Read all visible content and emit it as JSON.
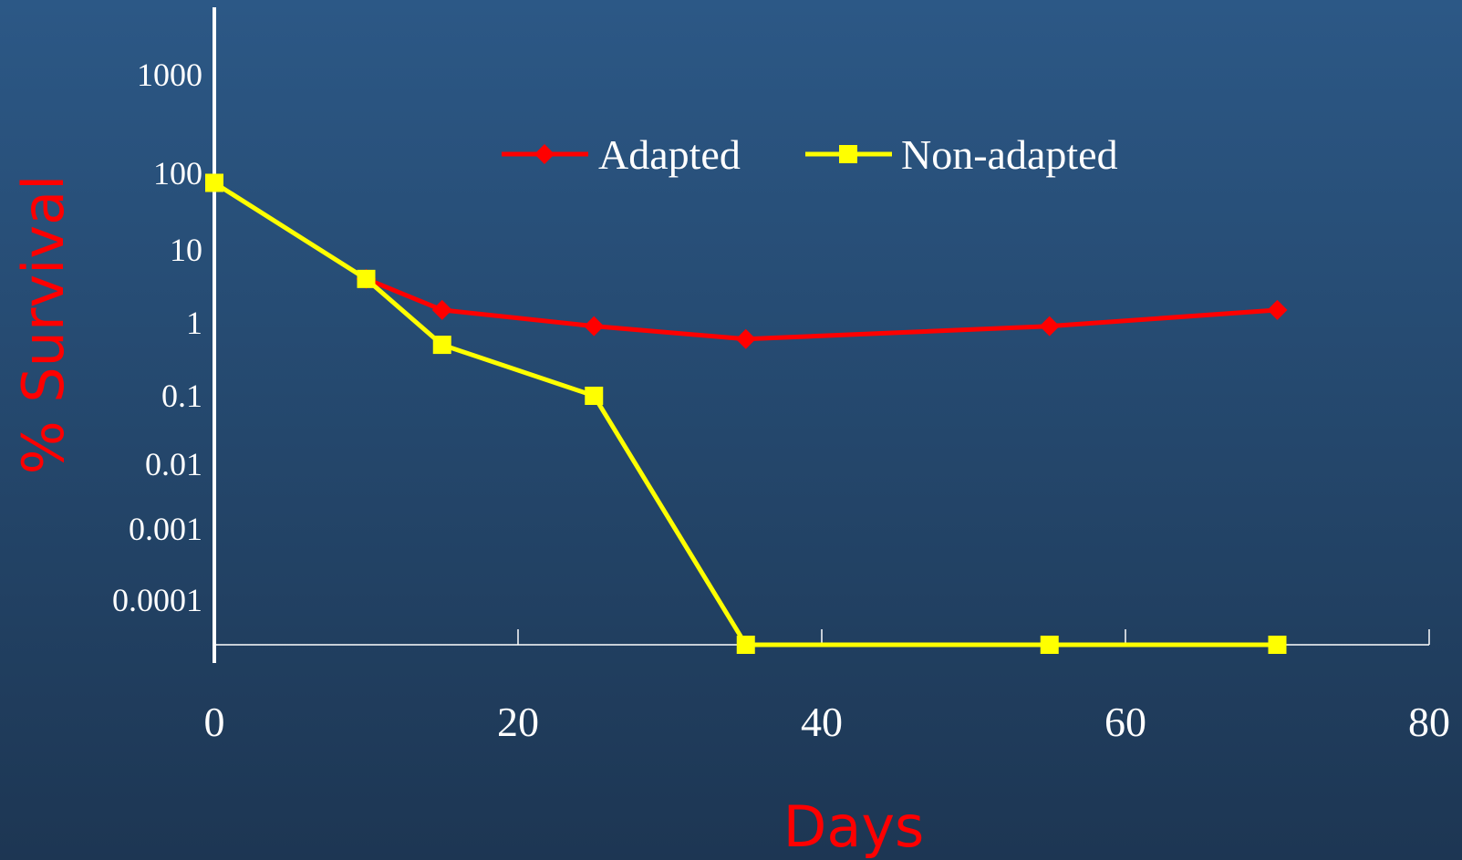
{
  "chart_data": {
    "type": "line",
    "xlabel": "Days",
    "ylabel": "% Survival",
    "xlim": [
      0,
      80
    ],
    "x_ticks": [
      0,
      20,
      40,
      60,
      80
    ],
    "x_tick_labels": [
      "0",
      "20",
      "40",
      "60",
      "80"
    ],
    "y_scale": "log",
    "y_ticks": [
      1000,
      100,
      10,
      1,
      0.1,
      0.01,
      0.001,
      0.0001
    ],
    "y_tick_labels": [
      "1000",
      "100",
      "10",
      "1",
      "0.1",
      "0.01",
      "0.001",
      "0.0001"
    ],
    "grid": false,
    "legend_position": "top-center",
    "series": [
      {
        "name": "Adapted",
        "color": "#ff0000",
        "marker": "diamond",
        "x": [
          10,
          15,
          25,
          35,
          55,
          70
        ],
        "y": [
          4,
          1.5,
          0.9,
          0.6,
          0.9,
          1.5
        ]
      },
      {
        "name": "Non-adapted",
        "color": "#ffff00",
        "marker": "square",
        "x": [
          0,
          10,
          15,
          25,
          35,
          55,
          70
        ],
        "y": [
          75,
          4,
          0.5,
          0.1,
          2e-05,
          2e-05,
          2e-05
        ]
      }
    ]
  },
  "colors": {
    "axis": "#ffffff",
    "axis_title": "#ff0000",
    "tick_label": "#ffffff"
  }
}
